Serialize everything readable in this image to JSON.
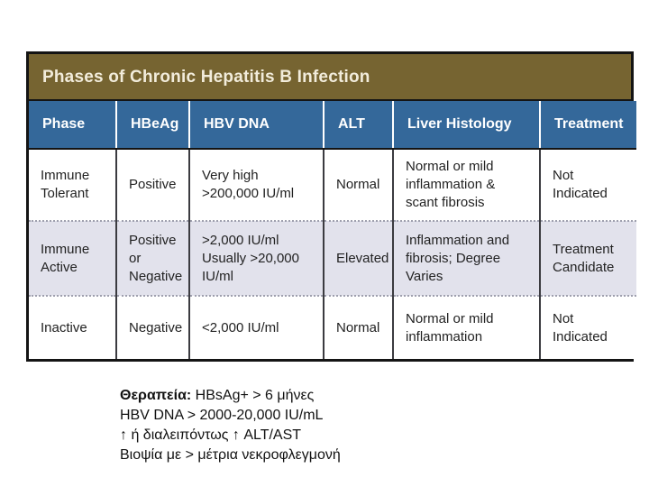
{
  "table": {
    "title": "Phases of Chronic Hepatitis B Infection",
    "columns": [
      "Phase",
      "HBeAg",
      "HBV DNA",
      "ALT",
      "Liver Histology",
      "Treatment"
    ],
    "rows": [
      [
        "Immune\nTolerant",
        "Positive",
        "Very high\n>200,000 IU/ml",
        "Normal",
        "Normal or mild\ninflammation &\nscant fibrosis",
        "Not\nIndicated"
      ],
      [
        "Immune\nActive",
        "Positive\nor\nNegative",
        ">2,000 IU/ml\nUsually >20,000\nIU/ml",
        "Elevated",
        "Inflammation and\nfibrosis; Degree\nVaries",
        "Treatment\nCandidate"
      ],
      [
        "Inactive",
        "Negative",
        "<2,000 IU/ml",
        "Normal",
        "Normal or mild\ninflammation",
        "Not\nIndicated"
      ]
    ]
  },
  "notes": {
    "line1_label": "Θεραπεία:",
    "line1_text": " HBsAg+ > 6 μήνες",
    "line2": "HBV DNA > 2000-20,000 IU/mL",
    "line3": "↑ ή διαλειπόντως ↑ ALT/AST",
    "line4": "Βιοψία με > μέτρια νεκροφλεγμονή"
  },
  "colors": {
    "title_bar_bg": "#766431",
    "title_text": "#F2ECDB",
    "header_bg": "#34689A",
    "header_text": "#FFFFFF",
    "row_alt_bg": "#E2E2EC",
    "row_bg": "#FFFFFF",
    "body_text": "#222222",
    "border_dark": "#141414"
  }
}
